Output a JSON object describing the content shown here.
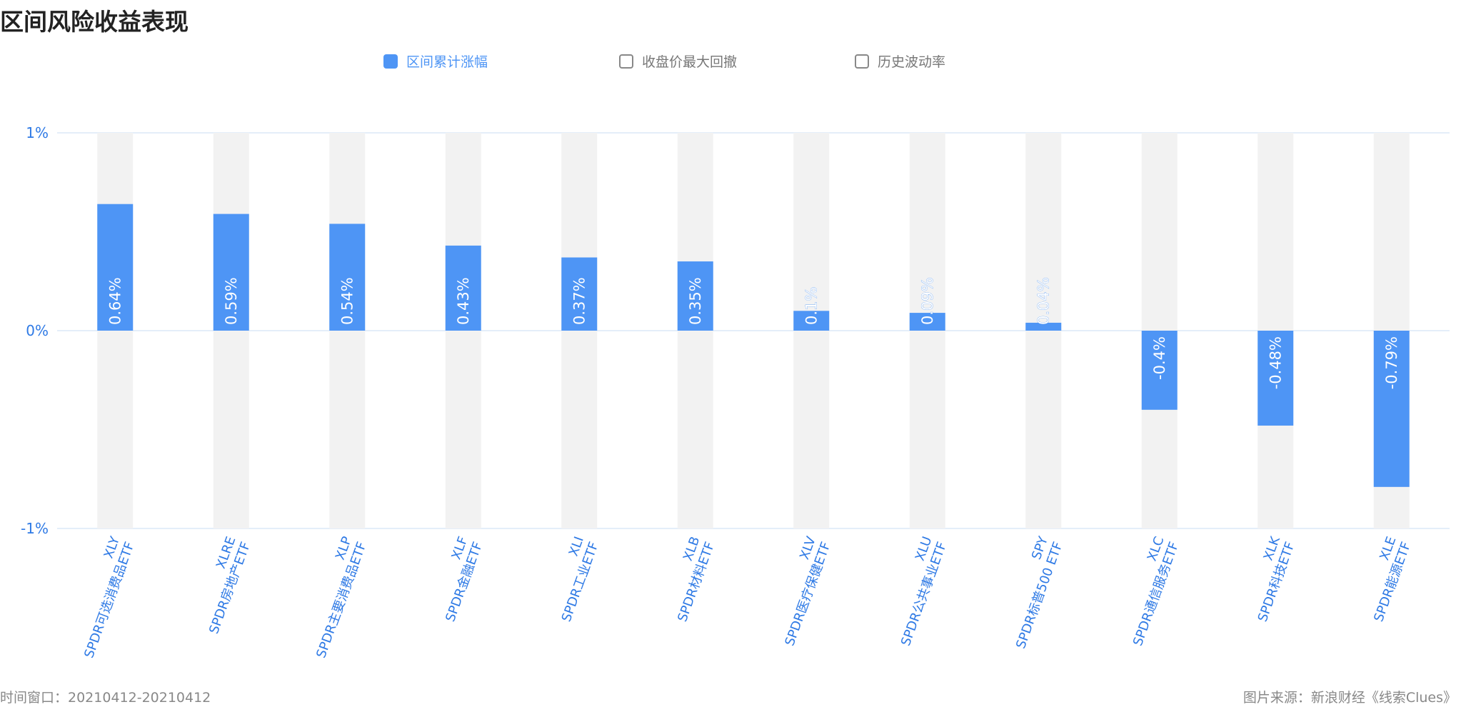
{
  "title": "区间风险收益表现",
  "legend": [
    {
      "label": "区间累计涨幅",
      "active": true
    },
    {
      "label": "收盘价最大回撤",
      "active": false
    },
    {
      "label": "历史波动率",
      "active": false
    }
  ],
  "footer": {
    "window": "时间窗口：20210412-20210412",
    "source": "图片来源：新浪财经《线索Clues》"
  },
  "colors": {
    "bar": "#4e95f5",
    "track": "#f2f2f2",
    "axis_text": "#2f7ae5",
    "grid": "#dce9f7"
  },
  "chart_data": {
    "type": "bar",
    "ylim": [
      -1,
      1
    ],
    "yticks": [
      "1%",
      "0%",
      "-1%"
    ],
    "ytick_values": [
      1,
      0,
      -1
    ],
    "categories": [
      {
        "code": "XLY",
        "name": "SPDR可选消费品ETF"
      },
      {
        "code": "XLRE",
        "name": "SPDR房地产ETF"
      },
      {
        "code": "XLP",
        "name": "SPDR主要消费品ETF"
      },
      {
        "code": "XLF",
        "name": "SPDR金融ETF"
      },
      {
        "code": "XLI",
        "name": "SPDR工业ETF"
      },
      {
        "code": "XLB",
        "name": "SPDR材料ETF"
      },
      {
        "code": "XLV",
        "name": "SPDR医疗保健ETF"
      },
      {
        "code": "XLU",
        "name": "SPDR公共事业ETF"
      },
      {
        "code": "SPY",
        "name": "SPDR标普500 ETF"
      },
      {
        "code": "XLC",
        "name": "SPDR通信服务ETF"
      },
      {
        "code": "XLK",
        "name": "SPDR科技ETF"
      },
      {
        "code": "XLE",
        "name": "SPDR能源ETF"
      }
    ],
    "series": [
      {
        "name": "区间累计涨幅",
        "values": [
          0.64,
          0.59,
          0.54,
          0.43,
          0.37,
          0.35,
          0.1,
          0.09,
          0.04,
          -0.4,
          -0.48,
          -0.79
        ],
        "labels": [
          "0.64%",
          "0.59%",
          "0.54%",
          "0.43%",
          "0.37%",
          "0.35%",
          "0.1%",
          "0.09%",
          "0.04%",
          "-0.4%",
          "-0.48%",
          "-0.79%"
        ]
      }
    ]
  }
}
